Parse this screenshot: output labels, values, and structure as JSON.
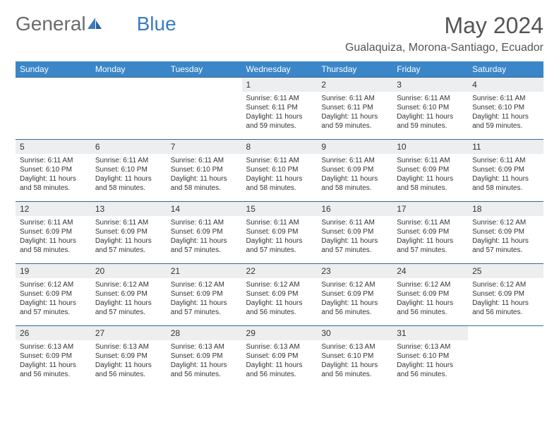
{
  "logo": {
    "text1": "General",
    "text2": "Blue"
  },
  "title": "May 2024",
  "location": "Gualaquiza, Morona-Santiago, Ecuador",
  "colors": {
    "header_bg": "#3a86c8",
    "header_text": "#ffffff",
    "border": "#3a6a95",
    "daynum_bg": "#eceeef",
    "text": "#333333",
    "logo_gray": "#6b6b6b",
    "logo_blue": "#3a7cbf"
  },
  "day_labels": [
    "Sunday",
    "Monday",
    "Tuesday",
    "Wednesday",
    "Thursday",
    "Friday",
    "Saturday"
  ],
  "days": [
    {
      "n": "",
      "lines": []
    },
    {
      "n": "",
      "lines": []
    },
    {
      "n": "",
      "lines": []
    },
    {
      "n": "1",
      "lines": [
        "Sunrise: 6:11 AM",
        "Sunset: 6:11 PM",
        "Daylight: 11 hours and 59 minutes."
      ]
    },
    {
      "n": "2",
      "lines": [
        "Sunrise: 6:11 AM",
        "Sunset: 6:11 PM",
        "Daylight: 11 hours and 59 minutes."
      ]
    },
    {
      "n": "3",
      "lines": [
        "Sunrise: 6:11 AM",
        "Sunset: 6:10 PM",
        "Daylight: 11 hours and 59 minutes."
      ]
    },
    {
      "n": "4",
      "lines": [
        "Sunrise: 6:11 AM",
        "Sunset: 6:10 PM",
        "Daylight: 11 hours and 59 minutes."
      ]
    },
    {
      "n": "5",
      "lines": [
        "Sunrise: 6:11 AM",
        "Sunset: 6:10 PM",
        "Daylight: 11 hours and 58 minutes."
      ]
    },
    {
      "n": "6",
      "lines": [
        "Sunrise: 6:11 AM",
        "Sunset: 6:10 PM",
        "Daylight: 11 hours and 58 minutes."
      ]
    },
    {
      "n": "7",
      "lines": [
        "Sunrise: 6:11 AM",
        "Sunset: 6:10 PM",
        "Daylight: 11 hours and 58 minutes."
      ]
    },
    {
      "n": "8",
      "lines": [
        "Sunrise: 6:11 AM",
        "Sunset: 6:10 PM",
        "Daylight: 11 hours and 58 minutes."
      ]
    },
    {
      "n": "9",
      "lines": [
        "Sunrise: 6:11 AM",
        "Sunset: 6:09 PM",
        "Daylight: 11 hours and 58 minutes."
      ]
    },
    {
      "n": "10",
      "lines": [
        "Sunrise: 6:11 AM",
        "Sunset: 6:09 PM",
        "Daylight: 11 hours and 58 minutes."
      ]
    },
    {
      "n": "11",
      "lines": [
        "Sunrise: 6:11 AM",
        "Sunset: 6:09 PM",
        "Daylight: 11 hours and 58 minutes."
      ]
    },
    {
      "n": "12",
      "lines": [
        "Sunrise: 6:11 AM",
        "Sunset: 6:09 PM",
        "Daylight: 11 hours and 58 minutes."
      ]
    },
    {
      "n": "13",
      "lines": [
        "Sunrise: 6:11 AM",
        "Sunset: 6:09 PM",
        "Daylight: 11 hours and 57 minutes."
      ]
    },
    {
      "n": "14",
      "lines": [
        "Sunrise: 6:11 AM",
        "Sunset: 6:09 PM",
        "Daylight: 11 hours and 57 minutes."
      ]
    },
    {
      "n": "15",
      "lines": [
        "Sunrise: 6:11 AM",
        "Sunset: 6:09 PM",
        "Daylight: 11 hours and 57 minutes."
      ]
    },
    {
      "n": "16",
      "lines": [
        "Sunrise: 6:11 AM",
        "Sunset: 6:09 PM",
        "Daylight: 11 hours and 57 minutes."
      ]
    },
    {
      "n": "17",
      "lines": [
        "Sunrise: 6:11 AM",
        "Sunset: 6:09 PM",
        "Daylight: 11 hours and 57 minutes."
      ]
    },
    {
      "n": "18",
      "lines": [
        "Sunrise: 6:12 AM",
        "Sunset: 6:09 PM",
        "Daylight: 11 hours and 57 minutes."
      ]
    },
    {
      "n": "19",
      "lines": [
        "Sunrise: 6:12 AM",
        "Sunset: 6:09 PM",
        "Daylight: 11 hours and 57 minutes."
      ]
    },
    {
      "n": "20",
      "lines": [
        "Sunrise: 6:12 AM",
        "Sunset: 6:09 PM",
        "Daylight: 11 hours and 57 minutes."
      ]
    },
    {
      "n": "21",
      "lines": [
        "Sunrise: 6:12 AM",
        "Sunset: 6:09 PM",
        "Daylight: 11 hours and 57 minutes."
      ]
    },
    {
      "n": "22",
      "lines": [
        "Sunrise: 6:12 AM",
        "Sunset: 6:09 PM",
        "Daylight: 11 hours and 56 minutes."
      ]
    },
    {
      "n": "23",
      "lines": [
        "Sunrise: 6:12 AM",
        "Sunset: 6:09 PM",
        "Daylight: 11 hours and 56 minutes."
      ]
    },
    {
      "n": "24",
      "lines": [
        "Sunrise: 6:12 AM",
        "Sunset: 6:09 PM",
        "Daylight: 11 hours and 56 minutes."
      ]
    },
    {
      "n": "25",
      "lines": [
        "Sunrise: 6:12 AM",
        "Sunset: 6:09 PM",
        "Daylight: 11 hours and 56 minutes."
      ]
    },
    {
      "n": "26",
      "lines": [
        "Sunrise: 6:13 AM",
        "Sunset: 6:09 PM",
        "Daylight: 11 hours and 56 minutes."
      ]
    },
    {
      "n": "27",
      "lines": [
        "Sunrise: 6:13 AM",
        "Sunset: 6:09 PM",
        "Daylight: 11 hours and 56 minutes."
      ]
    },
    {
      "n": "28",
      "lines": [
        "Sunrise: 6:13 AM",
        "Sunset: 6:09 PM",
        "Daylight: 11 hours and 56 minutes."
      ]
    },
    {
      "n": "29",
      "lines": [
        "Sunrise: 6:13 AM",
        "Sunset: 6:09 PM",
        "Daylight: 11 hours and 56 minutes."
      ]
    },
    {
      "n": "30",
      "lines": [
        "Sunrise: 6:13 AM",
        "Sunset: 6:10 PM",
        "Daylight: 11 hours and 56 minutes."
      ]
    },
    {
      "n": "31",
      "lines": [
        "Sunrise: 6:13 AM",
        "Sunset: 6:10 PM",
        "Daylight: 11 hours and 56 minutes."
      ]
    },
    {
      "n": "",
      "lines": []
    }
  ]
}
